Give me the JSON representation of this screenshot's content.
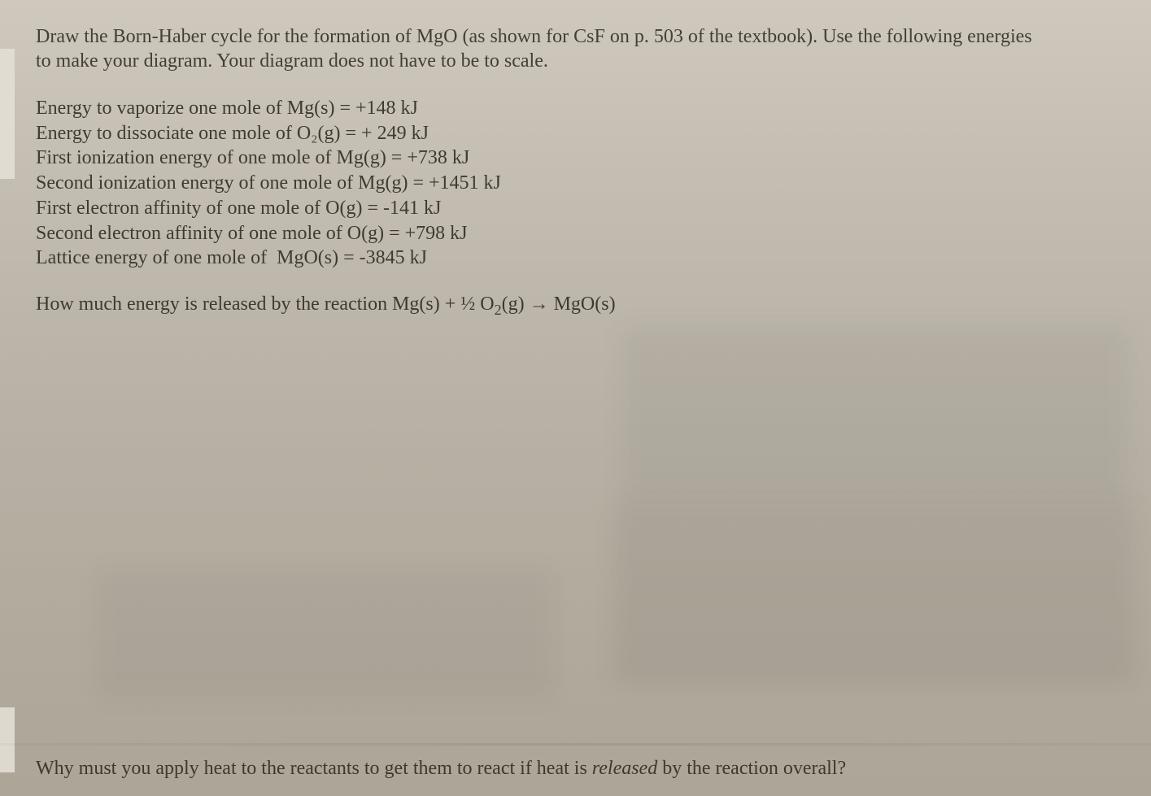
{
  "intro": {
    "line1_a": "Draw the Born-Haber cycle for the formation of MgO (as shown for CsF on p. 503 of the textbook).  Use the following energies",
    "line2": "to make your diagram.  Your diagram does not have to be to scale."
  },
  "energies": {
    "e1": "Energy to vaporize one mole of Mg(s) = +148 kJ",
    "e2": "Energy to dissociate one mole of O₂(g) = + 249 kJ",
    "e3": "First ionization energy of one mole of Mg(g) = +738 kJ",
    "e4": "Second ionization energy of one mole of Mg(g) = +1451 kJ",
    "e5": "First electron affinity of one mole of O(g) = -141 kJ",
    "e6": "Second electron affinity of one mole of O(g) = +798 kJ",
    "e7": "Lattice energy of one mole of  MgO(s) = -3845 kJ"
  },
  "question1": {
    "prefix": "How much energy is released by the reaction Mg(s) + ½ O",
    "sub": "2",
    "suffix": "(g) → MgO(s)"
  },
  "question2": {
    "a": "Why must you apply heat to the reactants to get them to react if heat is ",
    "released": "released",
    "b": " by the reaction overall?"
  },
  "colors": {
    "text": "#3a362f",
    "bg_top": "#cfc9bd",
    "bg_bottom": "#aca598"
  }
}
